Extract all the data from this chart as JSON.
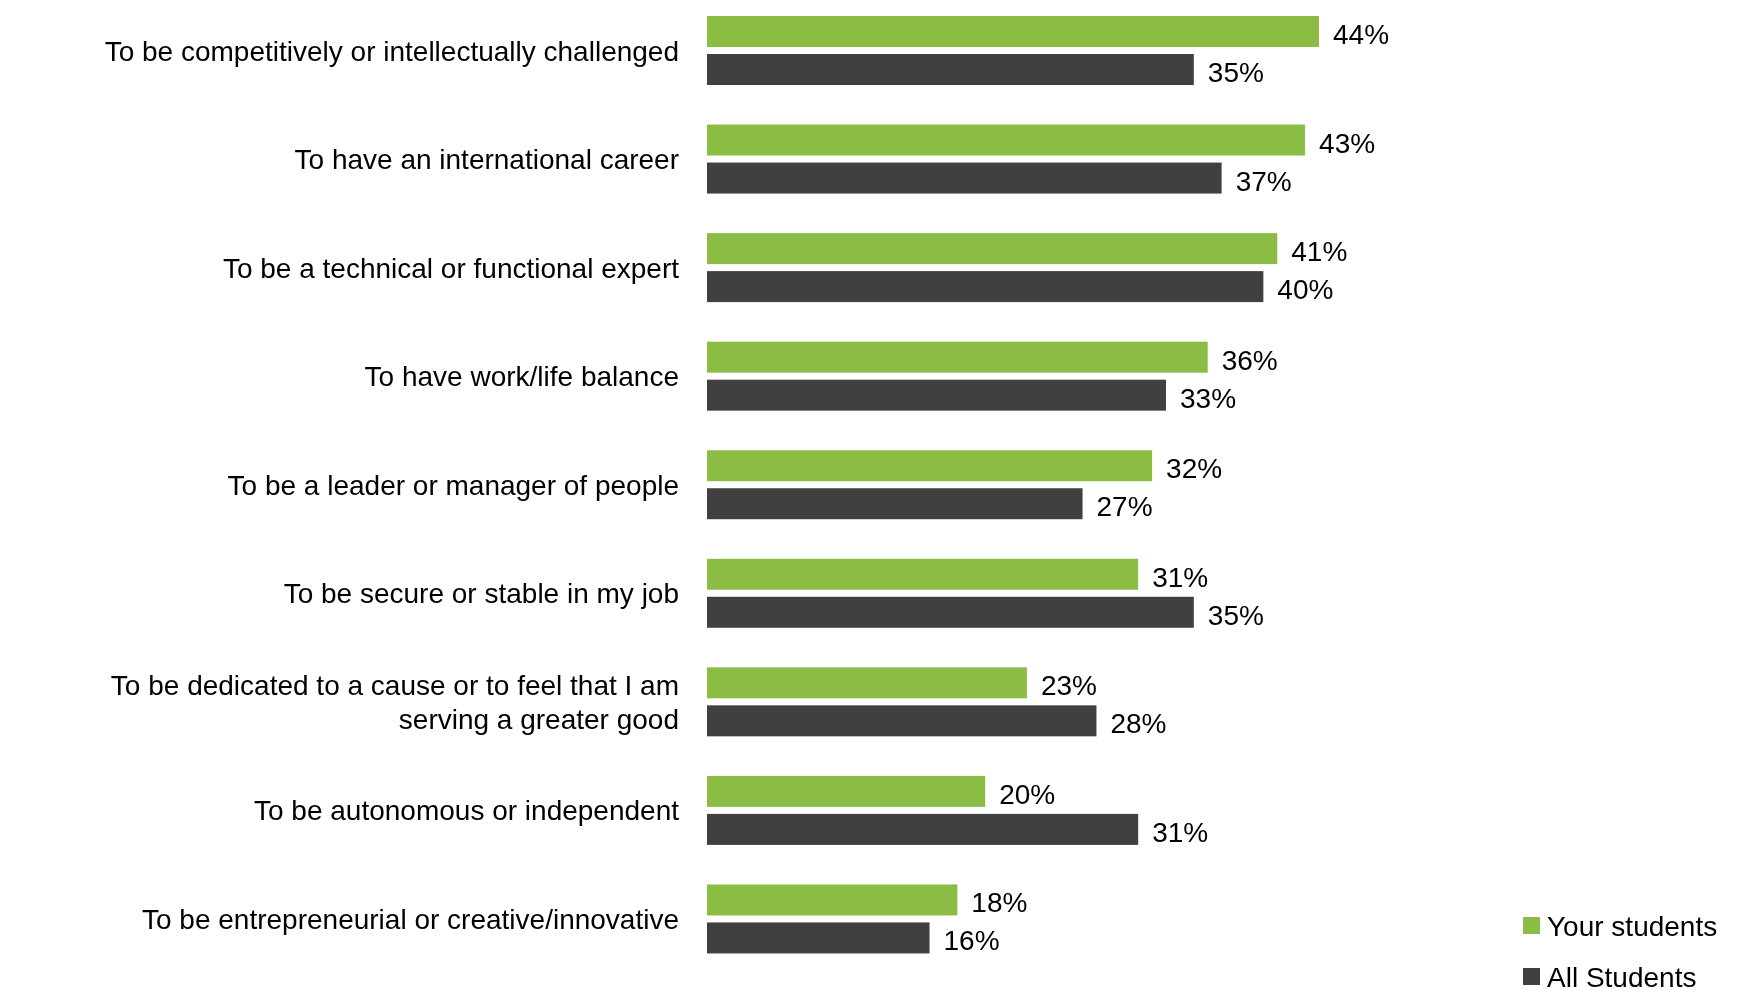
{
  "chart_data": {
    "type": "bar",
    "orientation": "horizontal",
    "categories": [
      "To be competitively or intellectually challenged",
      "To have an international career",
      "To be a technical or functional expert",
      "To have work/life balance",
      "To be a leader or manager of people",
      "To be secure or stable in my job",
      "To be dedicated to a cause or to feel that I am serving a greater good",
      "To be autonomous or independent",
      "To be entrepreneurial or creative/innovative"
    ],
    "series": [
      {
        "name": "Your students",
        "color": "#8bbd45",
        "values": [
          44,
          43,
          41,
          36,
          32,
          31,
          23,
          20,
          18
        ],
        "value_labels": [
          "44%",
          "43%",
          "41%",
          "36%",
          "32%",
          "31%",
          "23%",
          "20%",
          "18%"
        ]
      },
      {
        "name": "All Students",
        "color": "#404040",
        "values": [
          35,
          37,
          40,
          33,
          27,
          35,
          28,
          31,
          16
        ],
        "value_labels": [
          "35%",
          "37%",
          "40%",
          "33%",
          "27%",
          "35%",
          "28%",
          "31%",
          "16%"
        ]
      }
    ],
    "legend": "bottom right"
  }
}
